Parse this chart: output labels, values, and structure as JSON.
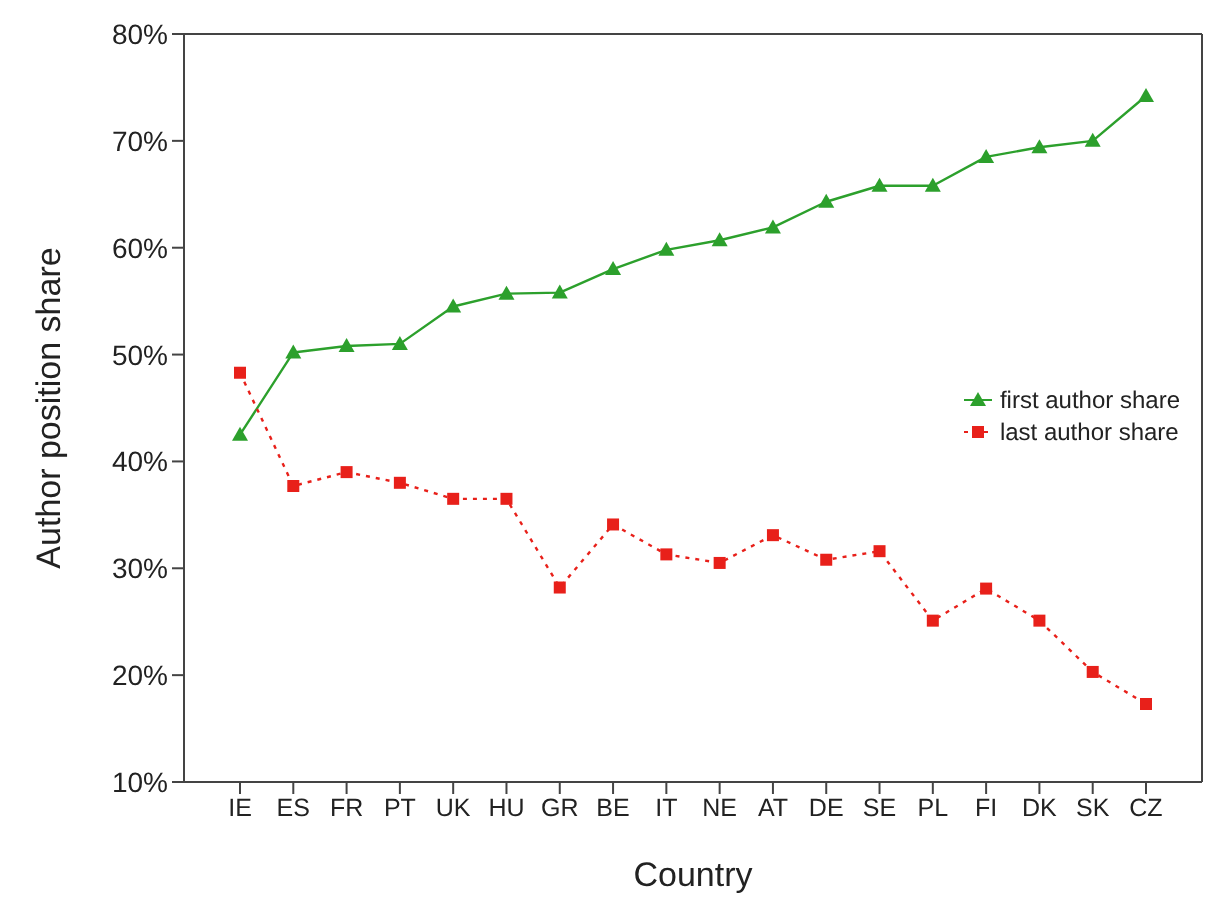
{
  "chart_data": {
    "type": "line",
    "xlabel": "Country",
    "ylabel": "Author position share",
    "categories": [
      "IE",
      "ES",
      "FR",
      "PT",
      "UK",
      "HU",
      "GR",
      "BE",
      "IT",
      "NE",
      "AT",
      "DE",
      "SE",
      "PL",
      "FI",
      "DK",
      "SK",
      "CZ"
    ],
    "series": [
      {
        "name": "first author share",
        "color": "#2ca02c",
        "marker": "triangle",
        "line_style": "solid",
        "values": [
          42.5,
          50.2,
          50.8,
          51,
          54.5,
          55.7,
          55.8,
          58,
          59.8,
          60.7,
          61.9,
          64.3,
          65.8,
          65.8,
          68.5,
          69.4,
          70,
          74.2
        ]
      },
      {
        "name": "last author share",
        "color": "#e8201a",
        "marker": "square",
        "line_style": "dotted",
        "values": [
          48.3,
          37.7,
          39,
          38,
          36.5,
          36.5,
          28.2,
          34.1,
          31.3,
          30.5,
          33.1,
          30.8,
          31.6,
          25.1,
          28.1,
          25.1,
          20.3,
          17.3
        ]
      }
    ],
    "ylim": [
      10,
      80
    ],
    "yticks": [
      {
        "value": 10,
        "label": "10%"
      },
      {
        "value": 20,
        "label": "20%"
      },
      {
        "value": 30,
        "label": "30%"
      },
      {
        "value": 40,
        "label": "40%"
      },
      {
        "value": 50,
        "label": "50%"
      },
      {
        "value": 60,
        "label": "60%"
      },
      {
        "value": 70,
        "label": "70%"
      },
      {
        "value": 80,
        "label": "80%"
      }
    ],
    "grid": false,
    "legend": "right"
  }
}
